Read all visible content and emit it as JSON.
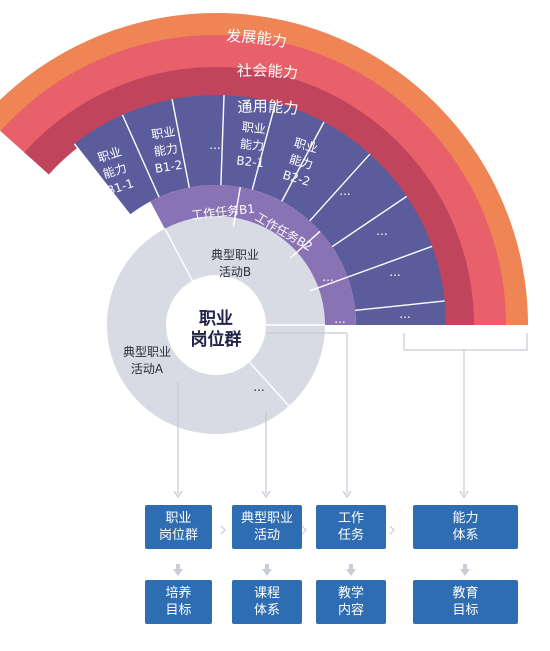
{
  "rings": {
    "development": "发展能力",
    "social": "社会能力",
    "general": "通用能力"
  },
  "vocational": {
    "b1_1": "职业\n能力\nB1-1",
    "b1_2": "职业\n能力\nB1-2",
    "b1_more": "...",
    "b2_1": "职业\n能力\nB2-1",
    "b2_2": "职业\n能力\nB2-2",
    "more": "..."
  },
  "tasks": {
    "b1": "工作任务B1",
    "b2": "工作任务B2",
    "more": "..."
  },
  "activities": {
    "b": "典型职业\n活动B",
    "a": "典型职业\n活动A",
    "more": "..."
  },
  "center": "职业\n岗位群",
  "flow_top": [
    {
      "label": "职业\n岗位群"
    },
    {
      "label": "典型职业\n活动"
    },
    {
      "label": "工作\n任务"
    },
    {
      "label": "能力\n体系"
    }
  ],
  "flow_bottom": [
    {
      "label": "培养\n目标"
    },
    {
      "label": "课程\n体系"
    },
    {
      "label": "教学\n内容"
    },
    {
      "label": "教育\n目标"
    }
  ],
  "colors": {
    "ring_outer": "#ef8455",
    "ring_mid": "#e8606a",
    "ring_inner": "#c0445c",
    "ability_band": "#5a5c9c",
    "task_band": "#8a73b4",
    "activity_band": "#d8dae4",
    "box": "#2f6db3",
    "line": "#c6cad2"
  }
}
